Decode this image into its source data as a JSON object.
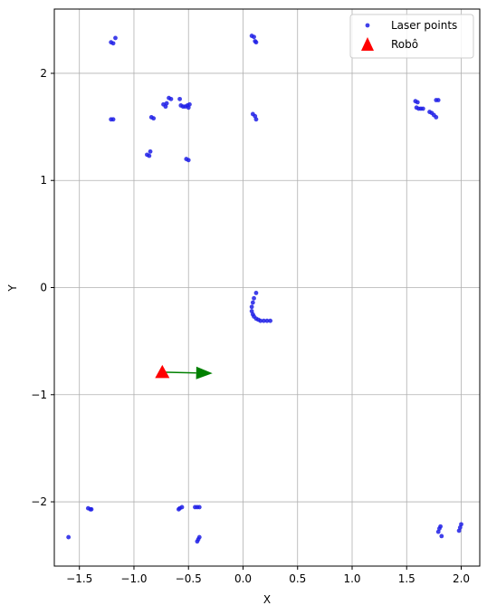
{
  "chart_data": {
    "type": "scatter",
    "title": "",
    "xlabel": "X",
    "ylabel": "Y",
    "xlim": [
      -1.73,
      2.17
    ],
    "ylim": [
      -2.6,
      2.6
    ],
    "grid": true,
    "legend_position": "top-right",
    "x_ticks": [
      -1.5,
      -1.0,
      -0.5,
      0.0,
      0.5,
      1.0,
      1.5,
      2.0
    ],
    "x_tick_labels": [
      "−1.5",
      "−1.0",
      "−0.5",
      "0.0",
      "0.5",
      "1.0",
      "1.5",
      "2.0"
    ],
    "y_ticks": [
      -2,
      -1,
      0,
      1,
      2
    ],
    "y_tick_labels": [
      "−2",
      "−1",
      "0",
      "1",
      "2"
    ],
    "series": [
      {
        "name": "Laser points",
        "kind": "scatter",
        "color": "#1f1fe6",
        "points": [
          [
            -1.21,
            2.29
          ],
          [
            -1.19,
            2.28
          ],
          [
            -1.17,
            2.33
          ],
          [
            -1.21,
            1.57
          ],
          [
            -1.19,
            1.57
          ],
          [
            -0.84,
            1.59
          ],
          [
            -0.82,
            1.58
          ],
          [
            -0.88,
            1.24
          ],
          [
            -0.86,
            1.23
          ],
          [
            -0.85,
            1.27
          ],
          [
            -0.73,
            1.71
          ],
          [
            -0.71,
            1.69
          ],
          [
            -0.7,
            1.72
          ],
          [
            -0.68,
            1.77
          ],
          [
            -0.66,
            1.76
          ],
          [
            -0.58,
            1.76
          ],
          [
            -0.57,
            1.7
          ],
          [
            -0.55,
            1.69
          ],
          [
            -0.53,
            1.69
          ],
          [
            -0.51,
            1.7
          ],
          [
            -0.5,
            1.68
          ],
          [
            -0.49,
            1.71
          ],
          [
            -0.52,
            1.2
          ],
          [
            -0.5,
            1.19
          ],
          [
            0.08,
            2.35
          ],
          [
            0.1,
            2.34
          ],
          [
            0.11,
            2.3
          ],
          [
            0.12,
            2.29
          ],
          [
            0.09,
            1.62
          ],
          [
            0.11,
            1.6
          ],
          [
            0.12,
            1.57
          ],
          [
            1.58,
            1.74
          ],
          [
            1.6,
            1.73
          ],
          [
            1.59,
            1.68
          ],
          [
            1.61,
            1.67
          ],
          [
            1.63,
            1.67
          ],
          [
            1.65,
            1.67
          ],
          [
            1.71,
            1.64
          ],
          [
            1.73,
            1.63
          ],
          [
            1.75,
            1.61
          ],
          [
            1.77,
            1.59
          ],
          [
            1.77,
            1.75
          ],
          [
            1.79,
            1.75
          ],
          [
            0.12,
            -0.05
          ],
          [
            0.1,
            -0.1
          ],
          [
            0.09,
            -0.14
          ],
          [
            0.08,
            -0.18
          ],
          [
            0.08,
            -0.22
          ],
          [
            0.09,
            -0.25
          ],
          [
            0.1,
            -0.27
          ],
          [
            0.12,
            -0.29
          ],
          [
            0.14,
            -0.3
          ],
          [
            0.16,
            -0.31
          ],
          [
            0.19,
            -0.31
          ],
          [
            0.22,
            -0.31
          ],
          [
            0.25,
            -0.31
          ],
          [
            -1.42,
            -2.06
          ],
          [
            -1.4,
            -2.07
          ],
          [
            -1.39,
            -2.07
          ],
          [
            -0.59,
            -2.07
          ],
          [
            -0.58,
            -2.06
          ],
          [
            -0.56,
            -2.05
          ],
          [
            -0.44,
            -2.05
          ],
          [
            -0.42,
            -2.05
          ],
          [
            -0.4,
            -2.05
          ],
          [
            -0.42,
            -2.37
          ],
          [
            -0.41,
            -2.35
          ],
          [
            -0.4,
            -2.33
          ],
          [
            -1.6,
            -2.33
          ],
          [
            1.79,
            -2.28
          ],
          [
            1.8,
            -2.25
          ],
          [
            1.81,
            -2.23
          ],
          [
            1.82,
            -2.32
          ],
          [
            1.98,
            -2.27
          ],
          [
            1.99,
            -2.24
          ],
          [
            2.0,
            -2.21
          ]
        ]
      },
      {
        "name": "Robô",
        "kind": "marker-triangle",
        "color": "#ff0000",
        "points": [
          [
            -0.74,
            -0.79
          ]
        ]
      }
    ],
    "annotations": [
      {
        "kind": "arrow",
        "color": "#008000",
        "from": [
          -0.74,
          -0.79
        ],
        "to": [
          -0.28,
          -0.8
        ]
      }
    ]
  }
}
